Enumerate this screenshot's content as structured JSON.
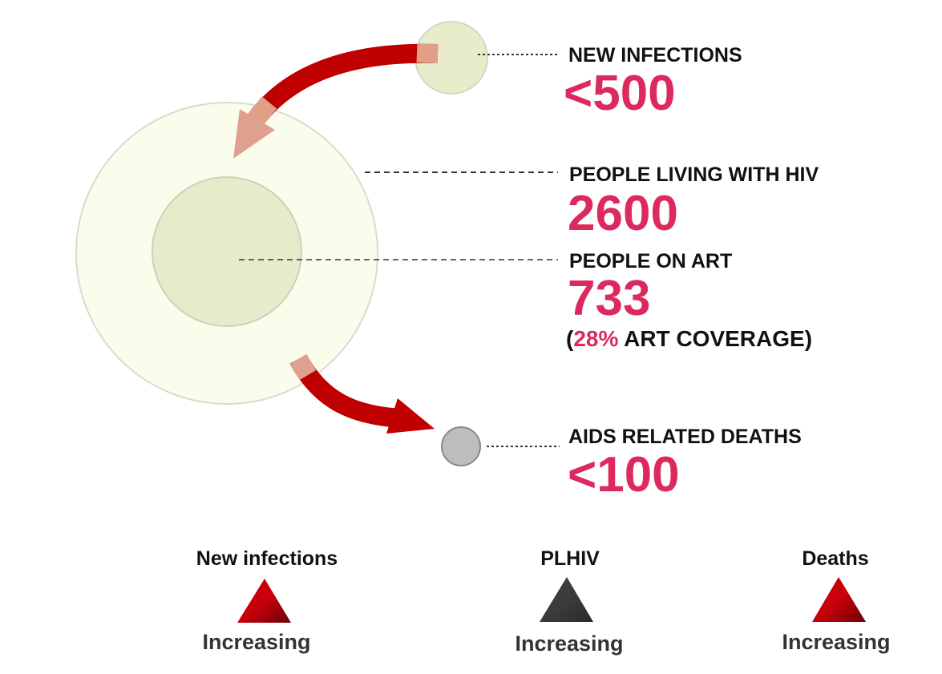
{
  "colors": {
    "accent": "#dd2a5e",
    "arrow": "#c00000",
    "increase_red": "#c00000",
    "increase_dark": "#3a3a3a"
  },
  "indicators": {
    "new_infections": {
      "label": "NEW INFECTIONS",
      "value": "<500"
    },
    "plhiv": {
      "label": "PEOPLE LIVING WITH HIV",
      "value": "2600"
    },
    "on_art": {
      "label": "PEOPLE ON ART",
      "value": "733",
      "coverage_open": "(",
      "coverage_pct": "28%",
      "coverage_text": " ART COVERAGE)"
    },
    "deaths": {
      "label": "AIDS RELATED DEATHS",
      "value": "<100"
    }
  },
  "trends": [
    {
      "title": "New infections",
      "status": "Increasing",
      "icon": "triangle-up-red"
    },
    {
      "title": "PLHIV",
      "status": "Increasing",
      "icon": "triangle-up-dark"
    },
    {
      "title": "Deaths",
      "status": "Increasing",
      "icon": "triangle-up-red"
    }
  ]
}
